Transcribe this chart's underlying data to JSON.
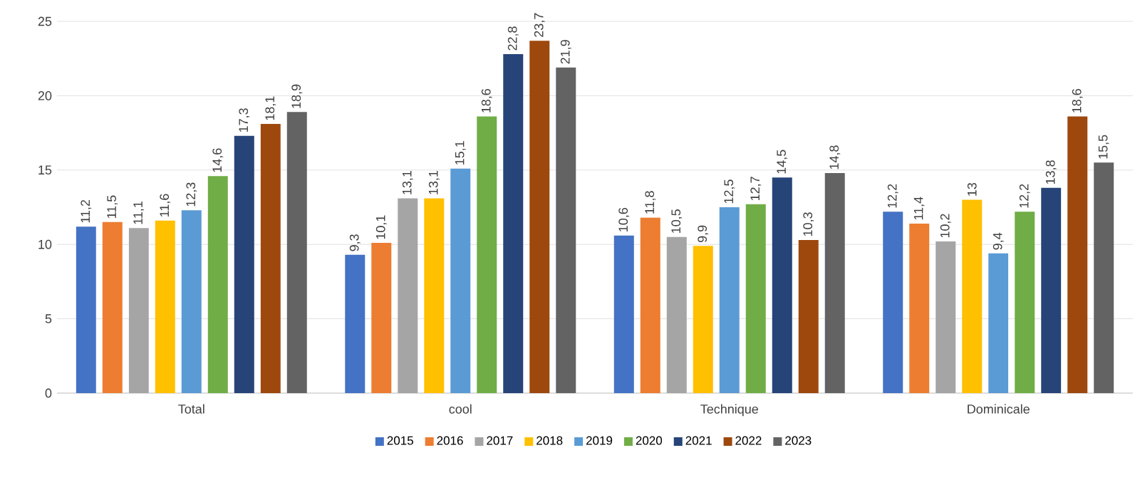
{
  "chart_data": {
    "type": "bar",
    "categories": [
      "Total",
      "cool",
      "Technique",
      "Dominicale"
    ],
    "series": [
      {
        "name": "2015",
        "color": "#4472c4",
        "values": [
          11.2,
          9.3,
          10.6,
          12.2
        ],
        "value_labels": [
          "11,2",
          "9,3",
          "10,6",
          "12,2"
        ]
      },
      {
        "name": "2016",
        "color": "#ed7d31",
        "values": [
          11.5,
          10.1,
          11.8,
          11.4
        ],
        "value_labels": [
          "11,5",
          "10,1",
          "11,8",
          "11,4"
        ]
      },
      {
        "name": "2017",
        "color": "#a5a5a5",
        "values": [
          11.1,
          13.1,
          10.5,
          10.2
        ],
        "value_labels": [
          "11,1",
          "13,1",
          "10,5",
          "10,2"
        ]
      },
      {
        "name": "2018",
        "color": "#ffc000",
        "values": [
          11.6,
          13.1,
          9.9,
          13
        ],
        "value_labels": [
          "11,6",
          "13,1",
          "9,9",
          "13"
        ]
      },
      {
        "name": "2019",
        "color": "#5b9bd5",
        "values": [
          12.3,
          15.1,
          12.5,
          9.4
        ],
        "value_labels": [
          "12,3",
          "15,1",
          "12,5",
          "9,4"
        ]
      },
      {
        "name": "2020",
        "color": "#70ad47",
        "values": [
          14.6,
          18.6,
          12.7,
          12.2
        ],
        "value_labels": [
          "14,6",
          "18,6",
          "12,7",
          "12,2"
        ]
      },
      {
        "name": "2021",
        "color": "#264478",
        "values": [
          17.3,
          22.8,
          14.5,
          13.8
        ],
        "value_labels": [
          "17,3",
          "22,8",
          "14,5",
          "13,8"
        ]
      },
      {
        "name": "2022",
        "color": "#9e480e",
        "values": [
          18.1,
          23.7,
          10.3,
          18.6
        ],
        "value_labels": [
          "18,1",
          "23,7",
          "10,3",
          "18,6"
        ]
      },
      {
        "name": "2023",
        "color": "#636363",
        "values": [
          18.9,
          21.9,
          14.8,
          15.5
        ],
        "value_labels": [
          "18,9",
          "21,9",
          "14,8",
          "15,5"
        ]
      }
    ],
    "ylim": [
      0,
      25
    ],
    "yticks": [
      0,
      5,
      10,
      15,
      20,
      25
    ],
    "grid": "y",
    "legend": "bottom"
  }
}
